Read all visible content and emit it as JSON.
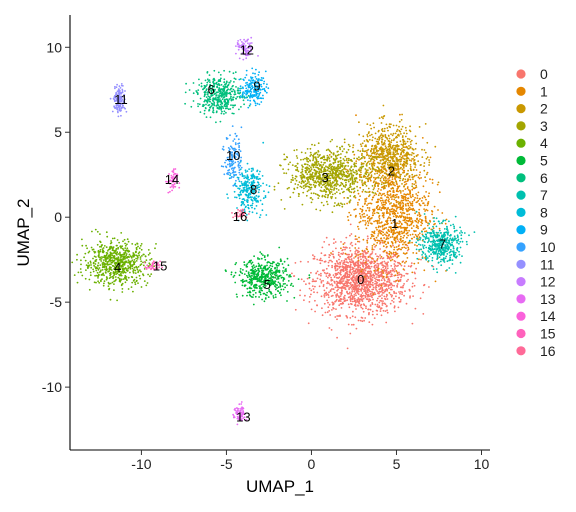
{
  "chart_data": {
    "type": "scatter",
    "title": "",
    "xlabel": "UMAP_1",
    "ylabel": "UMAP_2",
    "xlim": [
      -14.2,
      10.5
    ],
    "ylim": [
      -13.7,
      11.9
    ],
    "x_ticks": [
      -10,
      -5,
      0,
      5,
      10
    ],
    "y_ticks": [
      -10,
      -5,
      0,
      5,
      10
    ],
    "grid": false,
    "legend": "right",
    "clusters": [
      {
        "name": "0",
        "color": "#F8766D",
        "cx": 2.9,
        "cy": -3.7,
        "rx": 2.7,
        "ry": 2.0,
        "n": 1400
      },
      {
        "name": "1",
        "color": "#E58700",
        "cx": 4.8,
        "cy": 0.3,
        "rx": 2.2,
        "ry": 3.2,
        "n": 1000
      },
      {
        "name": "2",
        "color": "#C99800",
        "cx": 4.6,
        "cy": 3.6,
        "rx": 1.8,
        "ry": 1.8,
        "n": 700
      },
      {
        "name": "3",
        "color": "#A3A500",
        "cx": 1.0,
        "cy": 2.5,
        "rx": 2.3,
        "ry": 1.5,
        "n": 800
      },
      {
        "name": "4",
        "color": "#6BB100",
        "cx": -11.5,
        "cy": -2.7,
        "rx": 1.9,
        "ry": 1.3,
        "n": 650
      },
      {
        "name": "5",
        "color": "#00BA38",
        "cx": -2.8,
        "cy": -3.6,
        "rx": 1.5,
        "ry": 1.1,
        "n": 480
      },
      {
        "name": "6",
        "color": "#00BF7D",
        "cx": -5.4,
        "cy": 7.2,
        "rx": 1.3,
        "ry": 1.1,
        "n": 420
      },
      {
        "name": "7",
        "color": "#00C0AF",
        "cx": 7.6,
        "cy": -1.6,
        "rx": 1.2,
        "ry": 1.2,
        "n": 420
      },
      {
        "name": "8",
        "color": "#00BCD8",
        "cx": -3.7,
        "cy": 1.6,
        "rx": 0.9,
        "ry": 1.3,
        "n": 260
      },
      {
        "name": "9",
        "color": "#00B0F6",
        "cx": -3.4,
        "cy": 7.6,
        "rx": 0.7,
        "ry": 0.9,
        "n": 170
      },
      {
        "name": "10",
        "color": "#35A2FF",
        "cx": -4.6,
        "cy": 3.5,
        "rx": 0.5,
        "ry": 1.5,
        "n": 130
      },
      {
        "name": "11",
        "color": "#9590FF",
        "cx": -11.3,
        "cy": 6.9,
        "rx": 0.35,
        "ry": 0.8,
        "n": 150
      },
      {
        "name": "12",
        "color": "#C77CFF",
        "cx": -3.9,
        "cy": 9.9,
        "rx": 0.5,
        "ry": 0.6,
        "n": 70
      },
      {
        "name": "13",
        "color": "#E76BF3",
        "cx": -4.2,
        "cy": -11.6,
        "rx": 0.35,
        "ry": 0.6,
        "n": 70
      },
      {
        "name": "14",
        "color": "#FA62DB",
        "cx": -8.2,
        "cy": 2.1,
        "rx": 0.3,
        "ry": 0.7,
        "n": 50
      },
      {
        "name": "15",
        "color": "#FF62BC",
        "cx": -9.3,
        "cy": -2.9,
        "rx": 0.4,
        "ry": 0.3,
        "n": 40
      },
      {
        "name": "16",
        "color": "#FF6A98",
        "cx": -4.2,
        "cy": 0.2,
        "rx": 0.5,
        "ry": 0.3,
        "n": 30
      }
    ],
    "cluster_labels": [
      {
        "text": "0",
        "x": 2.9,
        "y": -3.7
      },
      {
        "text": "1",
        "x": 4.9,
        "y": -0.4
      },
      {
        "text": "2",
        "x": 4.7,
        "y": 2.7
      },
      {
        "text": "3",
        "x": 0.8,
        "y": 2.3
      },
      {
        "text": "4",
        "x": -11.4,
        "y": -3.0
      },
      {
        "text": "5",
        "x": -2.6,
        "y": -4.0
      },
      {
        "text": "6",
        "x": -5.9,
        "y": 7.5
      },
      {
        "text": "7",
        "x": 7.7,
        "y": -1.6
      },
      {
        "text": "8",
        "x": -3.4,
        "y": 1.6
      },
      {
        "text": "9",
        "x": -3.2,
        "y": 7.7
      },
      {
        "text": "10",
        "x": -4.6,
        "y": 3.6
      },
      {
        "text": "11",
        "x": -11.2,
        "y": 6.9
      },
      {
        "text": "12",
        "x": -3.8,
        "y": 9.8
      },
      {
        "text": "13",
        "x": -4.0,
        "y": -11.8
      },
      {
        "text": "14",
        "x": -8.2,
        "y": 2.2
      },
      {
        "text": "15",
        "x": -8.9,
        "y": -2.9
      },
      {
        "text": "16",
        "x": -4.2,
        "y": 0.0
      }
    ]
  }
}
